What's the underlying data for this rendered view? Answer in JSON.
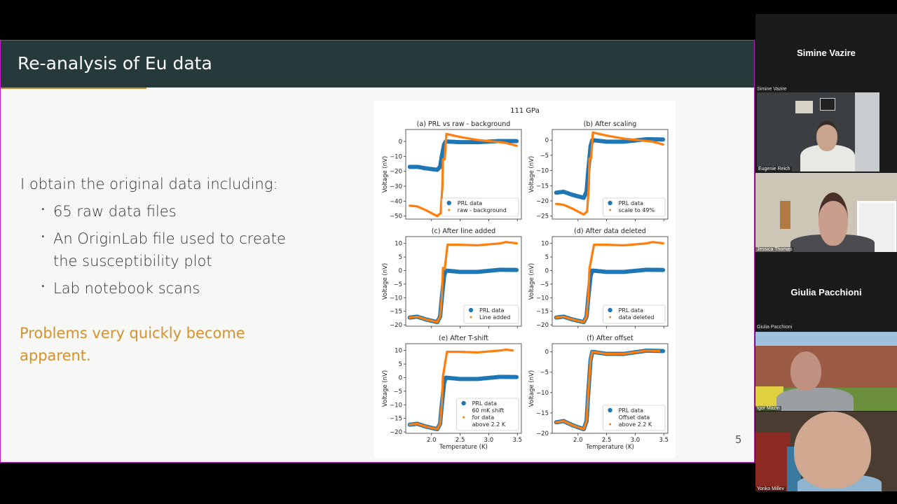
{
  "slide": {
    "title": "Re-analysis of Eu data",
    "intro": "I obtain the original data including:",
    "bullets": [
      "65 raw data files",
      "An OriginLab file used to create the susceptibility plot",
      "Lab notebook scans"
    ],
    "bullet_glyph": "·",
    "conclusion": "Problems very quickly become apparent.",
    "page_number": "5",
    "colors": {
      "header": "#263a3c",
      "accent": "#d4912f",
      "share_border": "#c020c0"
    }
  },
  "participants": {
    "name_tiles": [
      "Simine Vazire",
      "Giulia Pacchioni"
    ],
    "video_tiles": [
      {
        "top_label": "Simine Vazire",
        "name": "Eugenie Reich"
      },
      {
        "name": "Jessica Thomas"
      },
      {
        "top_label": "Giulia Pacchioni",
        "name": "Igor Mazin"
      },
      {
        "name": "Yonko Millev"
      }
    ]
  },
  "chart_data": {
    "type": "scatter",
    "title": "111 GPa",
    "colors": {
      "PRL": "#1f77b4",
      "other": "#ff7f0e"
    },
    "xlabel": "Temperature (K)",
    "xlim": [
      1.55,
      3.57
    ],
    "xticks": [
      2.0,
      2.5,
      3.0,
      3.5
    ],
    "panels": [
      {
        "title": "(a) PRL vs raw - background",
        "ylabel": "Voltage (nV)",
        "ylim": [
          -52,
          8
        ],
        "yticks": [
          0,
          -10,
          -20,
          -30,
          -40,
          -50
        ],
        "series": [
          {
            "name": "PRL data",
            "marker": "large",
            "points": [
              [
                1.62,
                -17
              ],
              [
                1.75,
                -17
              ],
              [
                1.9,
                -18
              ],
              [
                2.1,
                -19
              ],
              [
                2.15,
                -17
              ],
              [
                2.18,
                -10
              ],
              [
                2.22,
                -2
              ],
              [
                2.25,
                0
              ],
              [
                2.5,
                -0.5
              ],
              [
                2.8,
                -0.5
              ],
              [
                3.2,
                0.3
              ],
              [
                3.5,
                0.2
              ]
            ]
          },
          {
            "name": "raw - background",
            "marker": "small",
            "points": [
              [
                1.62,
                -43
              ],
              [
                1.75,
                -43.5
              ],
              [
                1.9,
                -46
              ],
              [
                2.1,
                -50
              ],
              [
                2.16,
                -48
              ],
              [
                2.19,
                -30
              ],
              [
                2.2,
                -12
              ],
              [
                2.23,
                -12
              ],
              [
                2.26,
                5
              ],
              [
                2.5,
                3
              ],
              [
                2.8,
                1
              ],
              [
                3.2,
                -0.5
              ],
              [
                3.3,
                -1
              ],
              [
                3.5,
                -3
              ]
            ]
          }
        ]
      },
      {
        "title": "(b) After scaling",
        "ylabel": "Voltage (nV)",
        "ylim": [
          -26,
          3.5
        ],
        "yticks": [
          0,
          -5,
          -10,
          -15,
          -20,
          -25
        ],
        "series": [
          {
            "name": "PRL data",
            "marker": "large",
            "points": [
              [
                1.62,
                -17.3
              ],
              [
                1.75,
                -17
              ],
              [
                1.9,
                -18
              ],
              [
                2.1,
                -19
              ],
              [
                2.15,
                -17
              ],
              [
                2.18,
                -10
              ],
              [
                2.22,
                -2
              ],
              [
                2.25,
                0
              ],
              [
                2.5,
                -0.5
              ],
              [
                2.8,
                -0.5
              ],
              [
                3.2,
                0.3
              ],
              [
                3.5,
                0.2
              ]
            ]
          },
          {
            "name": "scale to 49%",
            "marker": "small",
            "points": [
              [
                1.62,
                -21
              ],
              [
                1.75,
                -21.3
              ],
              [
                1.9,
                -22.5
              ],
              [
                2.1,
                -24.5
              ],
              [
                2.16,
                -23.5
              ],
              [
                2.19,
                -15
              ],
              [
                2.2,
                -6
              ],
              [
                2.23,
                -6
              ],
              [
                2.26,
                2.5
              ],
              [
                2.5,
                1.5
              ],
              [
                2.8,
                0.5
              ],
              [
                3.2,
                -0.3
              ],
              [
                3.3,
                -0.5
              ],
              [
                3.5,
                -1.5
              ]
            ]
          }
        ]
      },
      {
        "title": "(c) After line added",
        "ylabel": "Voltage (nV)",
        "ylim": [
          -20.5,
          12.5
        ],
        "yticks": [
          10,
          5,
          0,
          -5,
          -10,
          -15,
          -20
        ],
        "series": [
          {
            "name": "PRL data",
            "marker": "large",
            "points": [
              [
                1.62,
                -17.3
              ],
              [
                1.75,
                -17
              ],
              [
                1.9,
                -18
              ],
              [
                2.1,
                -19
              ],
              [
                2.15,
                -17
              ],
              [
                2.18,
                -10
              ],
              [
                2.22,
                -2
              ],
              [
                2.25,
                0
              ],
              [
                2.5,
                -0.5
              ],
              [
                2.8,
                -0.5
              ],
              [
                3.2,
                0.3
              ],
              [
                3.5,
                0.2
              ]
            ]
          },
          {
            "name": "Line added",
            "marker": "small",
            "points": [
              [
                1.62,
                -17.3
              ],
              [
                1.75,
                -17
              ],
              [
                1.9,
                -18
              ],
              [
                2.1,
                -19
              ],
              [
                2.15,
                -17
              ],
              [
                2.18,
                -10
              ],
              [
                2.2,
                1
              ],
              [
                2.23,
                0.5
              ],
              [
                2.28,
                9.5
              ],
              [
                2.5,
                9.5
              ],
              [
                2.8,
                9.3
              ],
              [
                3.2,
                10
              ],
              [
                3.3,
                10.5
              ],
              [
                3.5,
                10
              ]
            ]
          }
        ]
      },
      {
        "title": "(d) After data deleted",
        "ylabel": "Voltage (nV)",
        "ylim": [
          -20.5,
          12.5
        ],
        "yticks": [
          10,
          5,
          0,
          -5,
          -10,
          -15,
          -20
        ],
        "series": [
          {
            "name": "PRL data",
            "marker": "large",
            "points": [
              [
                1.62,
                -17.3
              ],
              [
                1.75,
                -17
              ],
              [
                1.9,
                -18
              ],
              [
                2.1,
                -19
              ],
              [
                2.15,
                -17
              ],
              [
                2.18,
                -10
              ],
              [
                2.22,
                -2
              ],
              [
                2.25,
                0
              ],
              [
                2.5,
                -0.5
              ],
              [
                2.8,
                -0.5
              ],
              [
                3.2,
                0.3
              ],
              [
                3.5,
                0.2
              ]
            ]
          },
          {
            "name": "data deleted",
            "marker": "small",
            "points": [
              [
                1.62,
                -17.3
              ],
              [
                1.75,
                -17
              ],
              [
                1.9,
                -18
              ],
              [
                2.1,
                -19
              ],
              [
                2.15,
                -17
              ],
              [
                2.18,
                -10
              ],
              [
                2.2,
                0.5
              ],
              [
                2.28,
                9.5
              ],
              [
                2.5,
                9.5
              ],
              [
                2.8,
                9.3
              ],
              [
                3.2,
                10
              ],
              [
                3.3,
                10.5
              ],
              [
                3.5,
                10
              ]
            ]
          }
        ]
      },
      {
        "title": "(e) After T-shift",
        "ylabel": "Voltage (nV)",
        "ylim": [
          -20.5,
          12.5
        ],
        "yticks": [
          10,
          5,
          0,
          -5,
          -10,
          -15,
          -20
        ],
        "show_xticks": true,
        "series": [
          {
            "name": "PRL data",
            "marker": "large",
            "points": [
              [
                1.62,
                -17.3
              ],
              [
                1.75,
                -17
              ],
              [
                1.9,
                -18
              ],
              [
                2.1,
                -19
              ],
              [
                2.15,
                -17
              ],
              [
                2.18,
                -10
              ],
              [
                2.22,
                -2
              ],
              [
                2.25,
                0
              ],
              [
                2.5,
                -0.5
              ],
              [
                2.8,
                -0.5
              ],
              [
                3.2,
                0.3
              ],
              [
                3.5,
                0.2
              ]
            ]
          },
          {
            "name": "60 mK shift\n for data\n above 2.2 K",
            "marker": "small",
            "points": [
              [
                1.62,
                -17.3
              ],
              [
                1.75,
                -17
              ],
              [
                1.9,
                -18
              ],
              [
                2.1,
                -19
              ],
              [
                2.15,
                -17
              ],
              [
                2.18,
                -10
              ],
              [
                2.2,
                0.5
              ],
              [
                2.27,
                9.5
              ],
              [
                2.5,
                9.5
              ],
              [
                2.8,
                9.3
              ],
              [
                3.2,
                10
              ],
              [
                3.3,
                10.3
              ],
              [
                3.43,
                10
              ]
            ]
          }
        ]
      },
      {
        "title": "(f) After offset",
        "ylabel": "Voltage (nV)",
        "ylim": [
          -20,
          2
        ],
        "yticks": [
          0,
          -5,
          -10,
          -15,
          -20
        ],
        "show_xticks": true,
        "series": [
          {
            "name": "PRL data",
            "marker": "large",
            "points": [
              [
                1.62,
                -17.3
              ],
              [
                1.75,
                -17
              ],
              [
                1.9,
                -18
              ],
              [
                2.1,
                -19
              ],
              [
                2.15,
                -17
              ],
              [
                2.18,
                -10
              ],
              [
                2.22,
                -2
              ],
              [
                2.25,
                0
              ],
              [
                2.5,
                -0.5
              ],
              [
                2.8,
                -0.5
              ],
              [
                3.2,
                0.3
              ],
              [
                3.5,
                0.2
              ]
            ]
          },
          {
            "name": "Offset data\n above 2.2 K",
            "marker": "small",
            "points": [
              [
                1.62,
                -17.3
              ],
              [
                1.75,
                -17
              ],
              [
                1.9,
                -18
              ],
              [
                2.1,
                -19
              ],
              [
                2.15,
                -17
              ],
              [
                2.18,
                -10
              ],
              [
                2.22,
                -2
              ],
              [
                2.25,
                0
              ],
              [
                2.5,
                -0.5
              ],
              [
                2.8,
                -0.5
              ],
              [
                3.2,
                0.3
              ],
              [
                3.43,
                0.2
              ]
            ]
          }
        ]
      }
    ]
  }
}
